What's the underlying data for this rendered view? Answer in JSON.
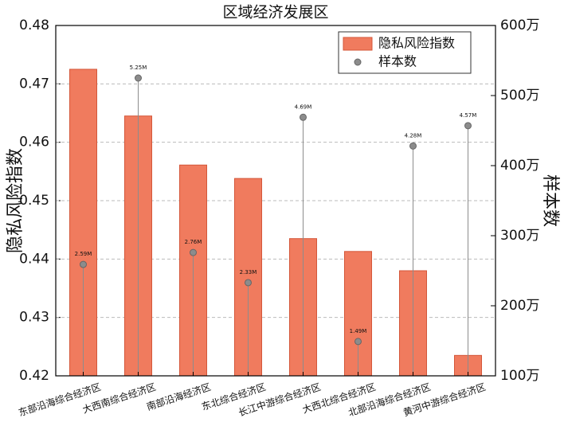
{
  "chart_data": {
    "type": "bar",
    "title": "区域经济发展区",
    "categories": [
      "东部沿海综合经济区",
      "大西南综合经济区",
      "南部沿海经济区",
      "东北综合经济区",
      "长江中游综合经济区",
      "大西北综合经济区",
      "北部沿海综合经济区",
      "黄河中游综合经济区"
    ],
    "series": [
      {
        "name": "隐私风险指数",
        "color": "#f07b5e",
        "values": [
          0.4725,
          0.4645,
          0.4561,
          0.4538,
          0.4435,
          0.4413,
          0.438,
          0.4235
        ]
      },
      {
        "name": "样本数",
        "color": "#8c8c8c",
        "axis": "y2",
        "values": [
          259,
          525,
          276,
          233,
          469,
          149,
          428,
          457
        ],
        "value_labels": [
          "2.59M",
          "5.25M",
          "2.76M",
          "2.33M",
          "4.69M",
          "1.49M",
          "4.28M",
          "4.57M"
        ]
      }
    ],
    "ylabel": "隐私风险指数",
    "y2label": "样本数",
    "ylim": [
      0.42,
      0.48
    ],
    "yticks": [
      0.42,
      0.43,
      0.44,
      0.45,
      0.46,
      0.47,
      0.48
    ],
    "y2lim": [
      100,
      600
    ],
    "y2ticks": [
      {
        "value": 100,
        "label": "100万"
      },
      {
        "value": 200,
        "label": "200万"
      },
      {
        "value": 300,
        "label": "300万"
      },
      {
        "value": 400,
        "label": "400万"
      },
      {
        "value": 500,
        "label": "500万"
      },
      {
        "value": 600,
        "label": "600万"
      }
    ],
    "grid": true,
    "legend": "upper right"
  }
}
